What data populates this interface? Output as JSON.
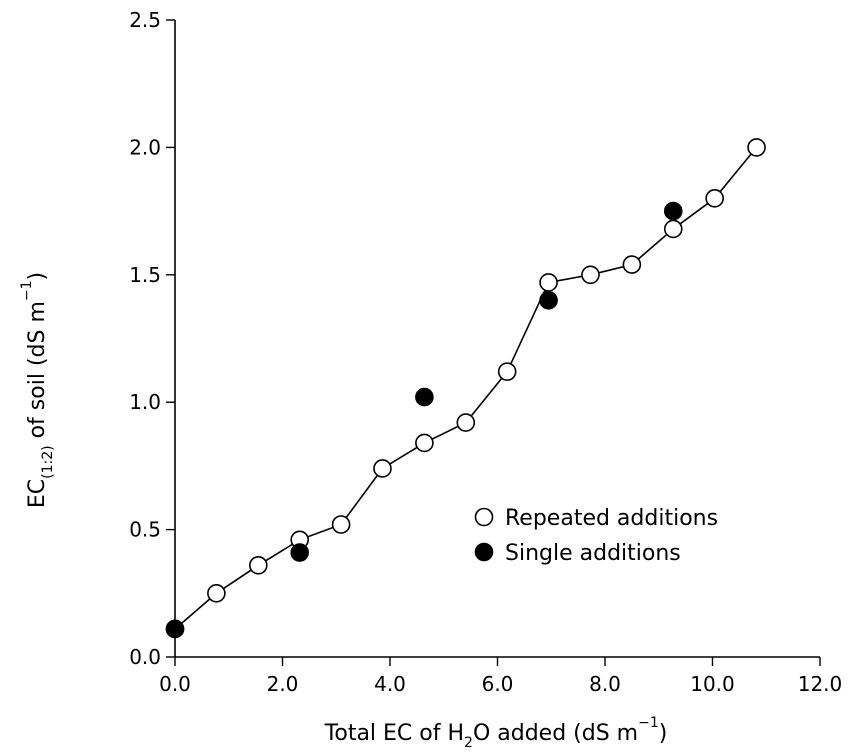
{
  "chart_data": {
    "type": "scatter",
    "title": "",
    "xlabel": {
      "prefix": "Total EC of H",
      "sub": "2",
      "middle": "O added (dS m",
      "sup": "−1",
      "suffix": ")"
    },
    "ylabel": {
      "prefix": "EC",
      "sub": "(1:2)",
      "middle": " of soil (dS m",
      "sup": "−1",
      "suffix": ")"
    },
    "xlim": [
      0,
      12
    ],
    "ylim": [
      0,
      2.5
    ],
    "xticks": [
      "0.0",
      "2.0",
      "4.0",
      "6.0",
      "8.0",
      "10.0",
      "12.0"
    ],
    "yticks": [
      "0.0",
      "0.5",
      "1.0",
      "1.5",
      "2.0",
      "2.5"
    ],
    "grid": false,
    "legend_position": "center-right",
    "series": [
      {
        "name": "Repeated additions",
        "marker": "open-circle",
        "connected": true,
        "color": "#000000",
        "x": [
          0.0,
          0.77,
          1.55,
          2.32,
          3.09,
          3.86,
          4.64,
          5.41,
          6.18,
          6.95,
          7.73,
          8.5,
          9.27,
          10.04,
          10.82
        ],
        "y": [
          0.11,
          0.25,
          0.36,
          0.46,
          0.52,
          0.74,
          0.84,
          0.92,
          1.12,
          1.47,
          1.5,
          1.54,
          1.68,
          1.8,
          2.0
        ]
      },
      {
        "name": "Single additions",
        "marker": "filled-circle",
        "connected": false,
        "color": "#000000",
        "x": [
          0.0,
          2.32,
          4.64,
          6.95,
          9.27
        ],
        "y": [
          0.11,
          0.41,
          1.02,
          1.4,
          1.75
        ]
      }
    ]
  }
}
